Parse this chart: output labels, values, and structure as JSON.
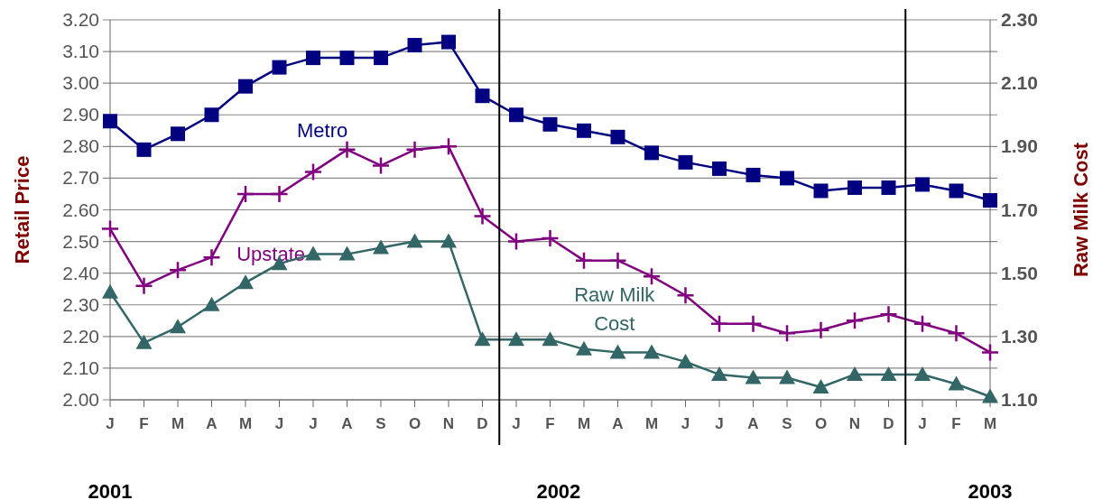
{
  "chart_data": {
    "type": "line",
    "xlabel": null,
    "ylabel": "Retail Price",
    "y2label": "Raw Milk Cost",
    "categories": [
      "J",
      "F",
      "M",
      "A",
      "M",
      "J",
      "J",
      "A",
      "S",
      "O",
      "N",
      "D",
      "J",
      "F",
      "M",
      "A",
      "M",
      "J",
      "J",
      "A",
      "S",
      "O",
      "N",
      "D",
      "J",
      "F",
      "M"
    ],
    "ylim": [
      2.0,
      3.2
    ],
    "yticks": [
      {
        "value": 2.0,
        "label": "2.00"
      },
      {
        "value": 2.1,
        "label": "2.10"
      },
      {
        "value": 2.2,
        "label": "2.20"
      },
      {
        "value": 2.3,
        "label": "2.30"
      },
      {
        "value": 2.4,
        "label": "2.40"
      },
      {
        "value": 2.5,
        "label": "2.50"
      },
      {
        "value": 2.6,
        "label": "2.60"
      },
      {
        "value": 2.7,
        "label": "2.70"
      },
      {
        "value": 2.8,
        "label": "2.80"
      },
      {
        "value": 2.9,
        "label": "2.90"
      },
      {
        "value": 3.0,
        "label": "3.00"
      },
      {
        "value": 3.1,
        "label": "3.10"
      },
      {
        "value": 3.2,
        "label": "3.20"
      }
    ],
    "y2lim": [
      1.1,
      2.3
    ],
    "y2ticks": [
      {
        "value": 1.1,
        "label": "1.10"
      },
      {
        "value": 1.3,
        "label": "1.30"
      },
      {
        "value": 1.5,
        "label": "1.50"
      },
      {
        "value": 1.7,
        "label": "1.70"
      },
      {
        "value": 1.9,
        "label": "1.90"
      },
      {
        "value": 2.1,
        "label": "2.10"
      },
      {
        "value": 2.3,
        "label": "2.30"
      }
    ],
    "grid": "y",
    "series": [
      {
        "name": "Metro",
        "color": "#000080",
        "marker": "square",
        "values": [
          2.88,
          2.79,
          2.84,
          2.9,
          2.99,
          3.05,
          3.08,
          3.08,
          3.08,
          3.12,
          3.13,
          2.96,
          2.9,
          2.87,
          2.85,
          2.83,
          2.78,
          2.75,
          2.73,
          2.71,
          2.7,
          2.66,
          2.67,
          2.67,
          2.68,
          2.66,
          2.63
        ]
      },
      {
        "name": "Upstate",
        "color": "#800080",
        "marker": "cross",
        "values": [
          2.54,
          2.36,
          2.41,
          2.45,
          2.65,
          2.65,
          2.72,
          2.79,
          2.74,
          2.79,
          2.8,
          2.58,
          2.5,
          2.51,
          2.44,
          2.44,
          2.39,
          2.33,
          2.24,
          2.24,
          2.21,
          2.22,
          2.25,
          2.27,
          2.24,
          2.21,
          2.15
        ]
      },
      {
        "name": "Raw Milk Cost",
        "color": "#336666",
        "marker": "triangle",
        "axis": "y2",
        "values": [
          1.44,
          1.28,
          1.33,
          1.4,
          1.47,
          1.53,
          1.56,
          1.56,
          1.58,
          1.6,
          1.6,
          1.29,
          1.29,
          1.29,
          1.26,
          1.25,
          1.25,
          1.22,
          1.18,
          1.17,
          1.17,
          1.14,
          1.18,
          1.18,
          1.18,
          1.15,
          1.11
        ]
      }
    ],
    "annotations": [
      "2001",
      "2002",
      "2003"
    ]
  }
}
